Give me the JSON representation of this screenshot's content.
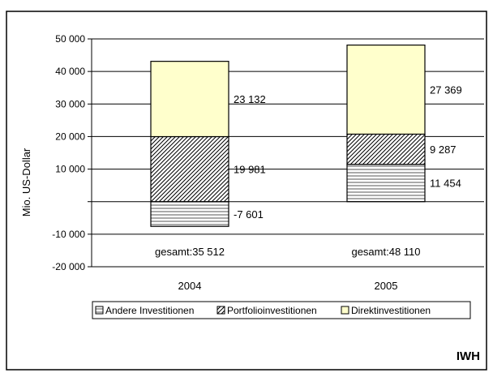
{
  "watermark": "IWH",
  "chart_data": {
    "type": "bar",
    "stacked": true,
    "ylabel": "Mio. US-Dollar",
    "ylim": [
      -20000,
      50000
    ],
    "y_ticks": [
      -20000,
      -10000,
      0,
      10000,
      20000,
      30000,
      40000,
      50000
    ],
    "y_tick_labels": [
      "-20 000",
      "-10 000",
      "",
      "10 000",
      "20 000",
      "30 000",
      "40 000",
      "50 000"
    ],
    "categories": [
      "2004",
      "2005"
    ],
    "series": [
      {
        "name": "Andere Investitionen",
        "values": [
          -7601,
          11454
        ],
        "labels": [
          "-7 601",
          "11 454"
        ],
        "color": "#ffffff",
        "pattern": "horizontal-lines"
      },
      {
        "name": "Portfolioinvestitionen",
        "values": [
          19981,
          9287
        ],
        "labels": [
          "19 981",
          "9 287"
        ],
        "color": "#ffffff",
        "pattern": "diagonal-lines"
      },
      {
        "name": "Direktinvestitionen",
        "values": [
          23132,
          27369
        ],
        "labels": [
          "23 132",
          "27 369"
        ],
        "color": "#ffffcc",
        "pattern": "solid"
      }
    ],
    "totals": [
      "gesamt:35 512",
      "gesamt:48 110"
    ],
    "legend_position": "bottom",
    "grid": true
  }
}
